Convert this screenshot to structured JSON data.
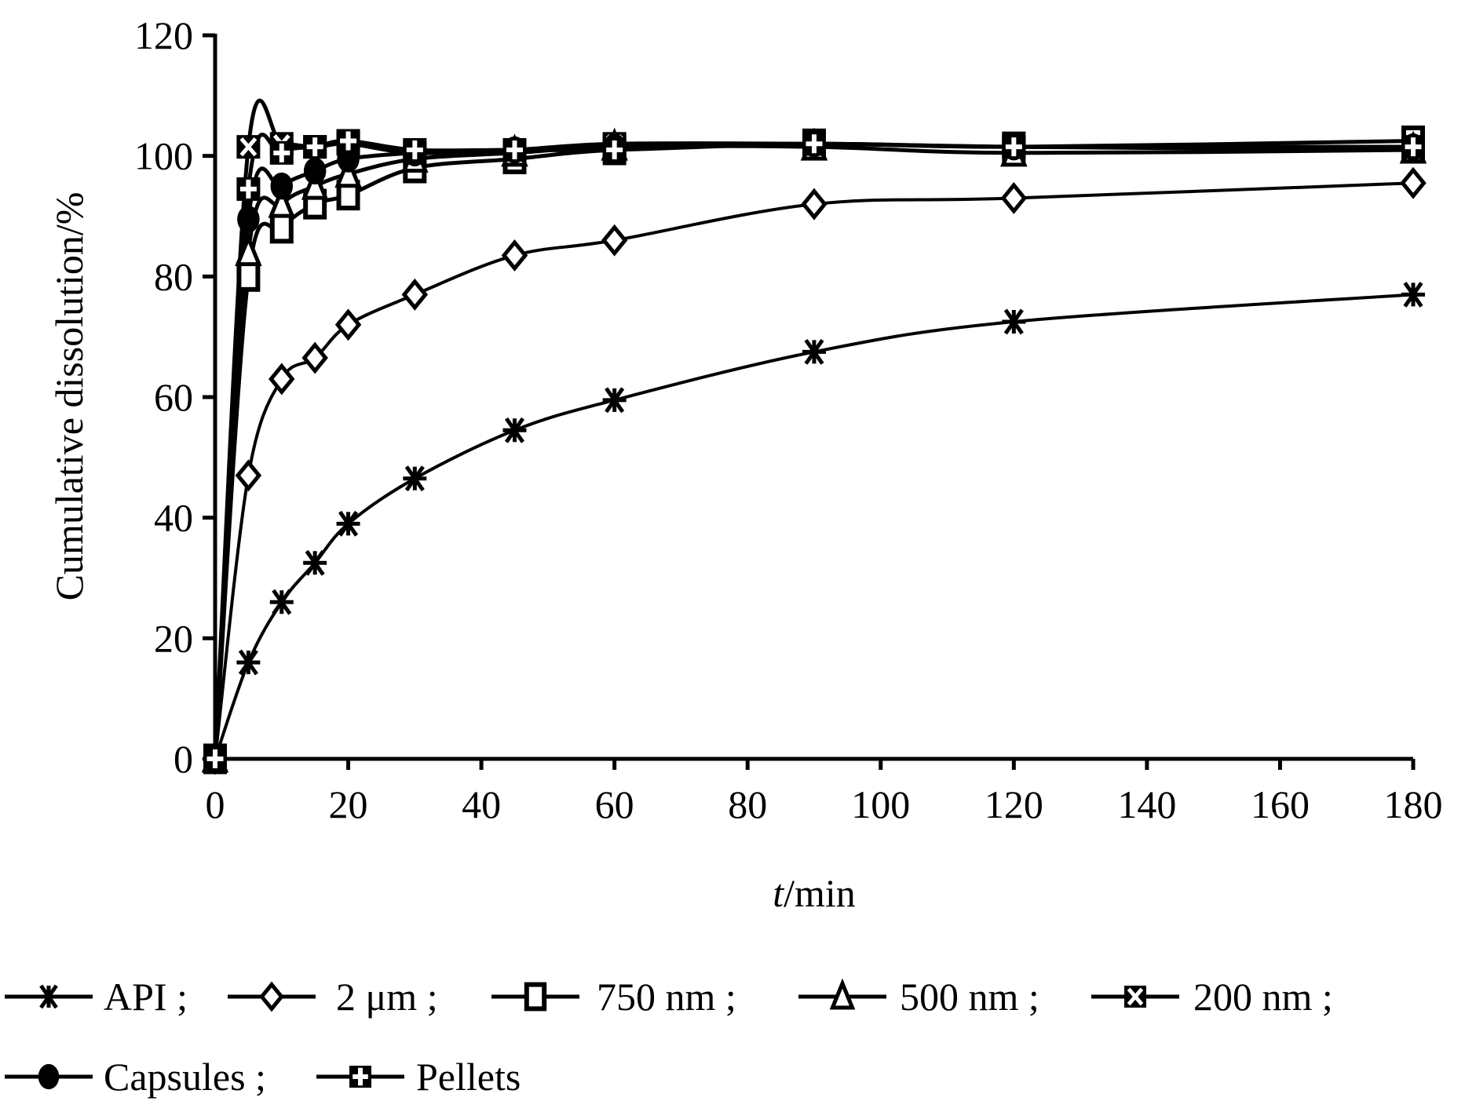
{
  "chart_data": {
    "type": "line",
    "xlabel_italic": "t",
    "xlabel_rest": "/min",
    "ylabel": "Cumulative dissolution/%",
    "xlim": [
      0,
      180
    ],
    "ylim": [
      0,
      120
    ],
    "xticks": [
      0,
      20,
      40,
      60,
      80,
      100,
      120,
      140,
      160,
      180
    ],
    "yticks": [
      0,
      20,
      40,
      60,
      80,
      100,
      120
    ],
    "grid": false,
    "legend_placement": "bottom",
    "x": [
      0,
      5,
      10,
      15,
      20,
      30,
      45,
      60,
      90,
      120,
      180
    ],
    "series": [
      {
        "name": "API",
        "legend": "API ;",
        "marker": "asterisk",
        "values": [
          0,
          16,
          26,
          32.5,
          39,
          46.5,
          54.5,
          59.5,
          67.5,
          72.5,
          77
        ]
      },
      {
        "name": "2 μm",
        "legend": "2 μm ;",
        "marker": "diamond-open",
        "values": [
          0,
          47,
          63,
          66.5,
          72,
          77,
          83.5,
          86,
          92,
          93,
          95.5
        ]
      },
      {
        "name": "750 nm",
        "legend": "750 nm ;",
        "marker": "square-open",
        "values": [
          0,
          80,
          88,
          92,
          93.5,
          98,
          99.5,
          101,
          102,
          101.5,
          102.5
        ]
      },
      {
        "name": "500 nm",
        "legend": "500 nm ;",
        "marker": "triangle-open",
        "values": [
          0,
          84,
          92,
          95,
          97,
          99.5,
          100.5,
          101.5,
          101.5,
          100.5,
          101
        ]
      },
      {
        "name": "200 nm",
        "legend": "200 nm ;",
        "marker": "x-box",
        "values": [
          0,
          101.5,
          102,
          101.5,
          102,
          100.5,
          101,
          102,
          102,
          101.5,
          101
        ]
      },
      {
        "name": "Capsules",
        "legend": "Capsules ;",
        "marker": "circle-filled",
        "values": [
          0,
          89.5,
          95,
          97.5,
          99.5,
          100.5,
          101,
          101.5,
          102,
          101.5,
          101.5
        ]
      },
      {
        "name": "Pellets",
        "legend": "Pellets",
        "marker": "plus-box",
        "values": [
          0,
          94.5,
          100.5,
          101.5,
          102.5,
          101,
          101,
          101,
          102,
          101.5,
          101.5
        ]
      }
    ]
  }
}
